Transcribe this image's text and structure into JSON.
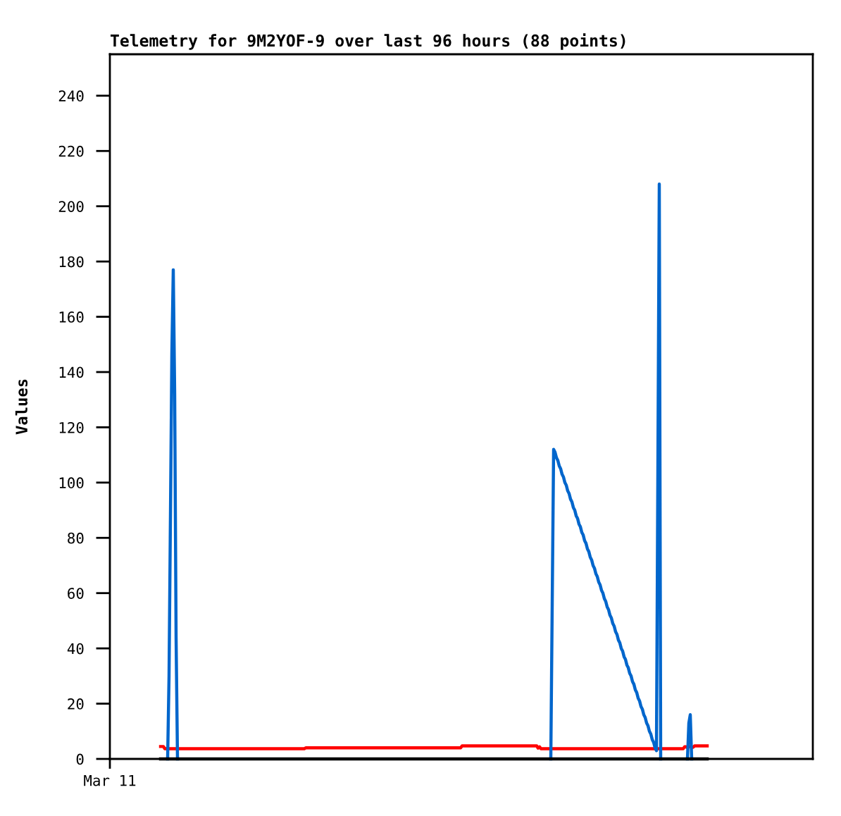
{
  "chart_data": {
    "type": "line",
    "title": "Telemetry for 9M2YOF-9 over last 96 hours (88 points)",
    "ylabel": "Values",
    "categories": [
      "Mar 11",
      null,
      null,
      null,
      null,
      null,
      null,
      null,
      null,
      null,
      null,
      null,
      null,
      null,
      null,
      null,
      null,
      null,
      null,
      null,
      null,
      null,
      null,
      null,
      null,
      null,
      null,
      null,
      null,
      null,
      null,
      null,
      null,
      null,
      null,
      null,
      null,
      null,
      null,
      null,
      null,
      null,
      null,
      null,
      null,
      null,
      null,
      null,
      null,
      null,
      null,
      null,
      null,
      null,
      null,
      null,
      null,
      null,
      null,
      null,
      null,
      null,
      null,
      null,
      null,
      null,
      null,
      null,
      null,
      null,
      null,
      null,
      null,
      null,
      null,
      null,
      null,
      null,
      null,
      null,
      null,
      null,
      null,
      null,
      null,
      null,
      null,
      null,
      null,
      null,
      null,
      null,
      null,
      null,
      null,
      null,
      null,
      null,
      null,
      null,
      null,
      null,
      null,
      null,
      null,
      null,
      null,
      null,
      null,
      null,
      null,
      null,
      null,
      null,
      null,
      null,
      null,
      null,
      null,
      null,
      null,
      null,
      null,
      null,
      null,
      null,
      null,
      null,
      null,
      null,
      null,
      null,
      null,
      null,
      null,
      null,
      null,
      null,
      null,
      null,
      null,
      null,
      null,
      null,
      null,
      null,
      null,
      null,
      null,
      null,
      null,
      null,
      null,
      null,
      null,
      null,
      null,
      null,
      null,
      null,
      null,
      null,
      null,
      null,
      null,
      null,
      null,
      null,
      null,
      null,
      null,
      null,
      null,
      null,
      null,
      null,
      null,
      null,
      null,
      null,
      null,
      null,
      null,
      null,
      null,
      null,
      null,
      null,
      null,
      null,
      null,
      null,
      null,
      null,
      null,
      null,
      null,
      null,
      null,
      null,
      null,
      null,
      null,
      null,
      null,
      null,
      null,
      null,
      null,
      null,
      null,
      null,
      null,
      null,
      null,
      null,
      null,
      null,
      null,
      null,
      null,
      null,
      null,
      null,
      null,
      null,
      null,
      null,
      null,
      null,
      null,
      null,
      null,
      null,
      null,
      null,
      null,
      null,
      null,
      null,
      null,
      null,
      null,
      null,
      null,
      null,
      null,
      null,
      null,
      null,
      null,
      null,
      null,
      null,
      null,
      null,
      null,
      null,
      null,
      null,
      null,
      null,
      null,
      null,
      null,
      null,
      null,
      null,
      null,
      null,
      null,
      null,
      null,
      null,
      null,
      null,
      null,
      null,
      null,
      null,
      null,
      null,
      null,
      null,
      null,
      null,
      null,
      null,
      null,
      null,
      null,
      null,
      null,
      null,
      null,
      null,
      null,
      null,
      null,
      null,
      null,
      null,
      null,
      null,
      null,
      null,
      null,
      null,
      null,
      null,
      null,
      null,
      null,
      null,
      null,
      null,
      null,
      null,
      null,
      null,
      null,
      null,
      null,
      null,
      null,
      null,
      null,
      null,
      null,
      null,
      null,
      null,
      null,
      null,
      null,
      null,
      null,
      null,
      null,
      null,
      null,
      null,
      null,
      null,
      null,
      null,
      null,
      null,
      null,
      null,
      null,
      null,
      null,
      null,
      null,
      null,
      null,
      null,
      null,
      null,
      null,
      null,
      null,
      null,
      null,
      null,
      null,
      null,
      null,
      null,
      null,
      null,
      null,
      null,
      null,
      null,
      null,
      null,
      null,
      null,
      null,
      null,
      null,
      null,
      null,
      null,
      null,
      null,
      null,
      null,
      null,
      null,
      null,
      null,
      null,
      null,
      null,
      null,
      null,
      null,
      null,
      null,
      null,
      null,
      null,
      null,
      null,
      null,
      null,
      null,
      null,
      null,
      null,
      null,
      null,
      null,
      null,
      null,
      null,
      null,
      null,
      null,
      null,
      null,
      null,
      null,
      null,
      null,
      null,
      null,
      null,
      null,
      null,
      null,
      null,
      null,
      null,
      null,
      null,
      null,
      null,
      null,
      null,
      null,
      null,
      null,
      null,
      null,
      null,
      null,
      null,
      null,
      null,
      null,
      null,
      null,
      null,
      null,
      null,
      null,
      null,
      null,
      null,
      null,
      null,
      null,
      null,
      null,
      null,
      null,
      null,
      null,
      null,
      null,
      null,
      null,
      null,
      null,
      null,
      null,
      null,
      null,
      null,
      null,
      null,
      null,
      null,
      null,
      null,
      null,
      null,
      null,
      null,
      null,
      null,
      null,
      null,
      null,
      null,
      null
    ],
    "series": [
      {
        "color": "#ff0000",
        "values": [
          null,
          null,
          null,
          null,
          null,
          null,
          null,
          null,
          null,
          null,
          null,
          null,
          null,
          null,
          null,
          null,
          null,
          null,
          null,
          null,
          null,
          null,
          null,
          null,
          null,
          null,
          null,
          null,
          null,
          null,
          null,
          null,
          null,
          null,
          null,
          null,
          4.5,
          4.5,
          4.5,
          3.7,
          3.7,
          3.7,
          3.7,
          3.7,
          3.7,
          3.7,
          3.7,
          3.7,
          3.7,
          3.7,
          3.7,
          3.7,
          3.7,
          3.7,
          3.7,
          3.7,
          3.7,
          3.7,
          3.7,
          3.7,
          3.7,
          3.7,
          3.7,
          3.7,
          3.7,
          3.7,
          3.7,
          3.7,
          3.7,
          3.7,
          3.7,
          3.7,
          3.7,
          3.7,
          3.7,
          3.7,
          3.7,
          3.7,
          3.7,
          3.7,
          3.7,
          3.7,
          3.7,
          3.7,
          3.7,
          3.7,
          3.7,
          3.7,
          3.7,
          3.7,
          3.7,
          3.7,
          3.7,
          3.7,
          3.7,
          3.7,
          3.7,
          3.7,
          3.7,
          3.7,
          3.7,
          3.7,
          3.7,
          3.7,
          3.7,
          3.7,
          3.7,
          3.7,
          3.7,
          3.7,
          3.7,
          3.7,
          3.7,
          3.7,
          3.7,
          3.7,
          3.7,
          3.7,
          3.7,
          3.7,
          3.7,
          3.7,
          3.7,
          3.7,
          3.7,
          3.7,
          3.7,
          3.7,
          3.7,
          3.7,
          3.7,
          3.7,
          3.7,
          3.7,
          3.7,
          3.7,
          3.7,
          3.7,
          3.7,
          4.0,
          4.0,
          4.0,
          4.0,
          4.0,
          4.0,
          4.0,
          4.0,
          4.0,
          4.0,
          4.0,
          4.0,
          4.0,
          4.0,
          4.0,
          4.0,
          4.0,
          4.0,
          4.0,
          4.0,
          4.0,
          4.0,
          4.0,
          4.0,
          4.0,
          4.0,
          4.0,
          4.0,
          4.0,
          4.0,
          4.0,
          4.0,
          4.0,
          4.0,
          4.0,
          4.0,
          4.0,
          4.0,
          4.0,
          4.0,
          4.0,
          4.0,
          4.0,
          4.0,
          4.0,
          4.0,
          4.0,
          4.0,
          4.0,
          4.0,
          4.0,
          4.0,
          4.0,
          4.0,
          4.0,
          4.0,
          4.0,
          4.0,
          4.0,
          4.0,
          4.0,
          4.0,
          4.0,
          4.0,
          4.0,
          4.0,
          4.0,
          4.0,
          4.0,
          4.0,
          4.0,
          4.0,
          4.0,
          4.0,
          4.0,
          4.0,
          4.0,
          4.0,
          4.0,
          4.0,
          4.0,
          4.0,
          4.0,
          4.0,
          4.0,
          4.0,
          4.0,
          4.0,
          4.0,
          4.0,
          4.0,
          4.0,
          4.0,
          4.0,
          4.0,
          4.0,
          4.0,
          4.0,
          4.0,
          4.0,
          4.0,
          4.0,
          4.0,
          4.0,
          4.0,
          4.0,
          4.0,
          4.0,
          4.0,
          4.0,
          4.0,
          4.7,
          4.7,
          4.7,
          4.7,
          4.7,
          4.7,
          4.7,
          4.7,
          4.7,
          4.7,
          4.7,
          4.7,
          4.7,
          4.7,
          4.7,
          4.7,
          4.7,
          4.7,
          4.7,
          4.7,
          4.7,
          4.7,
          4.7,
          4.7,
          4.7,
          4.7,
          4.7,
          4.7,
          4.7,
          4.7,
          4.7,
          4.7,
          4.7,
          4.7,
          4.7,
          4.7,
          4.7,
          4.7,
          4.7,
          4.7,
          4.7,
          4.7,
          4.7,
          4.7,
          4.7,
          4.7,
          4.7,
          4.7,
          4.7,
          4.7,
          4.7,
          4.7,
          4.7,
          4.7,
          3.9,
          4.4,
          3.7,
          3.7,
          3.7,
          3.7,
          3.7,
          3.7,
          3.7,
          3.7,
          3.7,
          3.7,
          3.7,
          3.7,
          3.7,
          3.7,
          3.7,
          3.7,
          3.7,
          3.7,
          3.7,
          3.7,
          3.7,
          3.7,
          3.7,
          3.7,
          3.7,
          3.7,
          3.7,
          3.7,
          3.7,
          3.7,
          3.7,
          3.7,
          3.7,
          3.7,
          3.7,
          3.7,
          3.7,
          3.7,
          3.7,
          3.7,
          3.7,
          3.7,
          3.7,
          3.7,
          3.7,
          3.7,
          3.7,
          3.7,
          3.7,
          3.7,
          3.7,
          3.7,
          3.7,
          3.7,
          3.7,
          3.7,
          3.7,
          3.7,
          3.7,
          3.7,
          3.7,
          3.7,
          3.7,
          3.7,
          3.7,
          3.7,
          3.7,
          3.7,
          3.7,
          3.7,
          3.7,
          3.7,
          3.7,
          3.7,
          3.7,
          3.7,
          3.7,
          3.7,
          3.7,
          3.7,
          3.7,
          3.7,
          3.7,
          3.7,
          3.7,
          3.7,
          3.7,
          3.7,
          3.7,
          3.7,
          3.7,
          3.7,
          3.7,
          3.7,
          3.7,
          3.7,
          3.7,
          3.7,
          3.7,
          3.7,
          3.7,
          3.7,
          4.4,
          4.4,
          4.0,
          4.5,
          4.5,
          4.2,
          4.2,
          4.7,
          4.7,
          4.7,
          4.7,
          4.7,
          4.7,
          4.7,
          4.7,
          4.7,
          4.7,
          null,
          null,
          null,
          null,
          null,
          null,
          null,
          null,
          null,
          null,
          null,
          null,
          null,
          null,
          null,
          null,
          null,
          null,
          null,
          null,
          null,
          null,
          null,
          null,
          null,
          null,
          null,
          null,
          null,
          null,
          null,
          null,
          null,
          null,
          null,
          null,
          null,
          null,
          null,
          null,
          null,
          null,
          null,
          null,
          null,
          null,
          null,
          null,
          null,
          null,
          null,
          null,
          null,
          null,
          null,
          null,
          null,
          null,
          null,
          null,
          null,
          null,
          null,
          null,
          null,
          null,
          null,
          null,
          null,
          null,
          null,
          null,
          null,
          null,
          null
        ]
      },
      {
        "color": "#0066cc",
        "values": [
          null,
          null,
          null,
          null,
          null,
          null,
          null,
          null,
          null,
          null,
          null,
          null,
          null,
          null,
          null,
          null,
          null,
          null,
          null,
          null,
          null,
          null,
          null,
          null,
          null,
          null,
          null,
          null,
          null,
          null,
          null,
          null,
          null,
          null,
          null,
          null,
          null,
          null,
          null,
          null,
          null,
          0,
          30,
          88,
          147,
          177,
          132,
          44,
          0,
          null,
          null,
          null,
          null,
          null,
          null,
          null,
          null,
          null,
          null,
          null,
          null,
          null,
          null,
          null,
          null,
          null,
          null,
          null,
          null,
          null,
          null,
          null,
          null,
          null,
          null,
          null,
          null,
          null,
          null,
          null,
          null,
          null,
          null,
          null,
          null,
          null,
          null,
          null,
          null,
          null,
          null,
          null,
          null,
          null,
          null,
          null,
          null,
          null,
          null,
          null,
          null,
          null,
          null,
          null,
          null,
          null,
          null,
          null,
          null,
          null,
          null,
          null,
          null,
          null,
          null,
          null,
          null,
          null,
          null,
          null,
          null,
          null,
          null,
          null,
          null,
          null,
          null,
          null,
          null,
          null,
          null,
          null,
          null,
          null,
          null,
          null,
          null,
          null,
          null,
          null,
          null,
          null,
          null,
          null,
          null,
          null,
          null,
          null,
          null,
          null,
          null,
          null,
          null,
          null,
          null,
          null,
          null,
          null,
          null,
          null,
          null,
          null,
          null,
          null,
          null,
          null,
          null,
          null,
          null,
          null,
          null,
          null,
          null,
          null,
          null,
          null,
          null,
          null,
          null,
          null,
          null,
          null,
          null,
          null,
          null,
          null,
          null,
          null,
          null,
          null,
          null,
          null,
          null,
          null,
          null,
          null,
          null,
          null,
          null,
          null,
          null,
          null,
          null,
          null,
          null,
          null,
          null,
          null,
          null,
          null,
          null,
          null,
          null,
          null,
          null,
          null,
          null,
          null,
          null,
          null,
          null,
          null,
          null,
          null,
          null,
          null,
          null,
          null,
          null,
          null,
          null,
          null,
          null,
          null,
          null,
          null,
          null,
          null,
          null,
          null,
          null,
          null,
          null,
          null,
          null,
          null,
          null,
          null,
          null,
          null,
          null,
          null,
          null,
          null,
          null,
          null,
          null,
          null,
          null,
          null,
          null,
          null,
          null,
          null,
          null,
          null,
          null,
          null,
          null,
          null,
          null,
          null,
          null,
          null,
          null,
          null,
          null,
          null,
          null,
          null,
          null,
          null,
          null,
          null,
          null,
          null,
          null,
          null,
          null,
          null,
          null,
          null,
          null,
          null,
          null,
          null,
          null,
          null,
          null,
          null,
          null,
          null,
          null,
          null,
          null,
          null,
          null,
          null,
          null,
          null,
          null,
          null,
          null,
          0,
          56,
          112,
          111,
          109,
          108,
          106,
          105,
          103,
          102,
          100,
          99,
          97,
          96,
          94,
          93,
          91,
          90,
          88,
          87,
          85,
          84,
          82,
          81,
          79,
          78,
          76,
          75,
          73,
          72,
          70,
          69,
          67,
          66,
          64,
          63,
          61,
          60,
          58,
          57,
          55,
          54,
          52,
          51,
          49,
          48,
          46,
          45,
          43,
          42,
          40,
          39,
          37,
          36,
          34,
          33,
          31,
          30,
          28,
          27,
          25,
          24,
          22,
          21,
          19,
          18,
          16,
          15,
          13,
          12,
          10,
          9,
          7,
          6,
          4,
          3,
          104,
          208,
          0,
          null,
          null,
          null,
          null,
          null,
          null,
          null,
          null,
          null,
          null,
          null,
          null,
          null,
          null,
          null,
          null,
          null,
          null,
          0,
          13,
          16,
          0,
          null,
          null,
          null,
          null,
          null,
          null,
          null,
          null,
          null,
          null,
          null,
          null,
          null,
          null,
          null,
          null,
          null,
          null,
          null,
          null,
          null,
          null,
          null,
          null,
          null,
          null,
          null,
          null,
          null,
          null,
          null,
          null,
          null,
          null,
          null,
          null,
          null,
          null,
          null,
          null,
          null,
          null,
          null,
          null,
          null,
          null,
          null,
          null,
          null,
          null,
          null,
          null,
          null,
          null,
          null,
          null,
          null,
          null,
          null,
          null,
          null,
          null,
          null,
          null,
          null,
          null,
          null,
          null,
          null,
          null,
          null,
          null,
          null,
          null,
          null,
          null,
          null,
          null,
          null,
          null,
          null,
          null,
          null,
          null,
          null,
          null
        ]
      },
      {
        "color": "#000000",
        "values": [
          null,
          null,
          null,
          null,
          null,
          null,
          null,
          null,
          null,
          null,
          null,
          null,
          null,
          null,
          null,
          null,
          null,
          null,
          null,
          null,
          null,
          null,
          null,
          null,
          null,
          null,
          null,
          null,
          null,
          null,
          null,
          null,
          null,
          null,
          null,
          null,
          0,
          0,
          0,
          0,
          0,
          0,
          0,
          0,
          0,
          0,
          0,
          0,
          0,
          0,
          0,
          0,
          0,
          0,
          0,
          0,
          0,
          0,
          0,
          0,
          0,
          0,
          0,
          0,
          0,
          0,
          0,
          0,
          0,
          0,
          0,
          0,
          0,
          0,
          0,
          0,
          0,
          0,
          0,
          0,
          0,
          0,
          0,
          0,
          0,
          0,
          0,
          0,
          0,
          0,
          0,
          0,
          0,
          0,
          0,
          0,
          0,
          0,
          0,
          0,
          0,
          0,
          0,
          0,
          0,
          0,
          0,
          0,
          0,
          0,
          0,
          0,
          0,
          0,
          0,
          0,
          0,
          0,
          0,
          0,
          0,
          0,
          0,
          0,
          0,
          0,
          0,
          0,
          0,
          0,
          0,
          0,
          0,
          0,
          0,
          0,
          0,
          0,
          0,
          0,
          0,
          0,
          0,
          0,
          0,
          0,
          0,
          0,
          0,
          0,
          0,
          0,
          0,
          0,
          0,
          0,
          0,
          0,
          0,
          0,
          0,
          0,
          0,
          0,
          0,
          0,
          0,
          0,
          0,
          0,
          0,
          0,
          0,
          0,
          0,
          0,
          0,
          0,
          0,
          0,
          0,
          0,
          0,
          0,
          0,
          0,
          0,
          0,
          0,
          0,
          0,
          0,
          0,
          0,
          0,
          0,
          0,
          0,
          0,
          0,
          0,
          0,
          0,
          0,
          0,
          0,
          0,
          0,
          0,
          0,
          0,
          0,
          0,
          0,
          0,
          0,
          0,
          0,
          0,
          0,
          0,
          0,
          0,
          0,
          0,
          0,
          0,
          0,
          0,
          0,
          0,
          0,
          0,
          0,
          0,
          0,
          0,
          0,
          0,
          0,
          0,
          0,
          0,
          0,
          0,
          0,
          0,
          0,
          0,
          0,
          0,
          0,
          0,
          0,
          0,
          0,
          0,
          0,
          0,
          0,
          0,
          0,
          0,
          0,
          0,
          0,
          0,
          0,
          0,
          0,
          0,
          0,
          0,
          0,
          0,
          0,
          0,
          0,
          0,
          0,
          0,
          0,
          0,
          0,
          0,
          0,
          0,
          0,
          0,
          0,
          0,
          0,
          0,
          0,
          0,
          0,
          0,
          0,
          0,
          0,
          0,
          0,
          0,
          0,
          0,
          0,
          0,
          0,
          0,
          0,
          0,
          0,
          0,
          0,
          0,
          0,
          0,
          0,
          0,
          0,
          0,
          0,
          0,
          0,
          0,
          0,
          0,
          0,
          0,
          0,
          0,
          0,
          0,
          0,
          0,
          0,
          0,
          0,
          0,
          0,
          0,
          0,
          0,
          0,
          0,
          0,
          0,
          0,
          0,
          0,
          0,
          0,
          0,
          0,
          0,
          0,
          0,
          0,
          0,
          0,
          0,
          0,
          0,
          0,
          0,
          0,
          0,
          0,
          0,
          0,
          0,
          0,
          0,
          0,
          0,
          0,
          0,
          0,
          0,
          0,
          0,
          0,
          0,
          0,
          0,
          0,
          0,
          0,
          0,
          0,
          0,
          0,
          0,
          0,
          0,
          0,
          0,
          0,
          0,
          0,
          0,
          0,
          0,
          0,
          0,
          0,
          0,
          0,
          0,
          0,
          0,
          0,
          0,
          0,
          0,
          0,
          0,
          0,
          0,
          0,
          0,
          0,
          0,
          0,
          0,
          null,
          null,
          null,
          null,
          null,
          null,
          null,
          null,
          null,
          null,
          null,
          null,
          null,
          null,
          null,
          null,
          null,
          null,
          null,
          null,
          null,
          null,
          null,
          null,
          null,
          null,
          null,
          null,
          null,
          null,
          null,
          null,
          null,
          null,
          null,
          null,
          null,
          null,
          null,
          null,
          null,
          null,
          null,
          null,
          null,
          null,
          null,
          null,
          null,
          null,
          null,
          null,
          null,
          null,
          null,
          null,
          null,
          null,
          null,
          null,
          null,
          null,
          null,
          null,
          null,
          null,
          null,
          null,
          null,
          null,
          null,
          null,
          null,
          null,
          null
        ]
      }
    ],
    "ylim": [
      0,
      255
    ],
    "yticks": [
      0,
      20,
      40,
      60,
      80,
      100,
      120,
      140,
      160,
      180,
      200,
      220,
      240
    ],
    "line_style": "solid"
  }
}
